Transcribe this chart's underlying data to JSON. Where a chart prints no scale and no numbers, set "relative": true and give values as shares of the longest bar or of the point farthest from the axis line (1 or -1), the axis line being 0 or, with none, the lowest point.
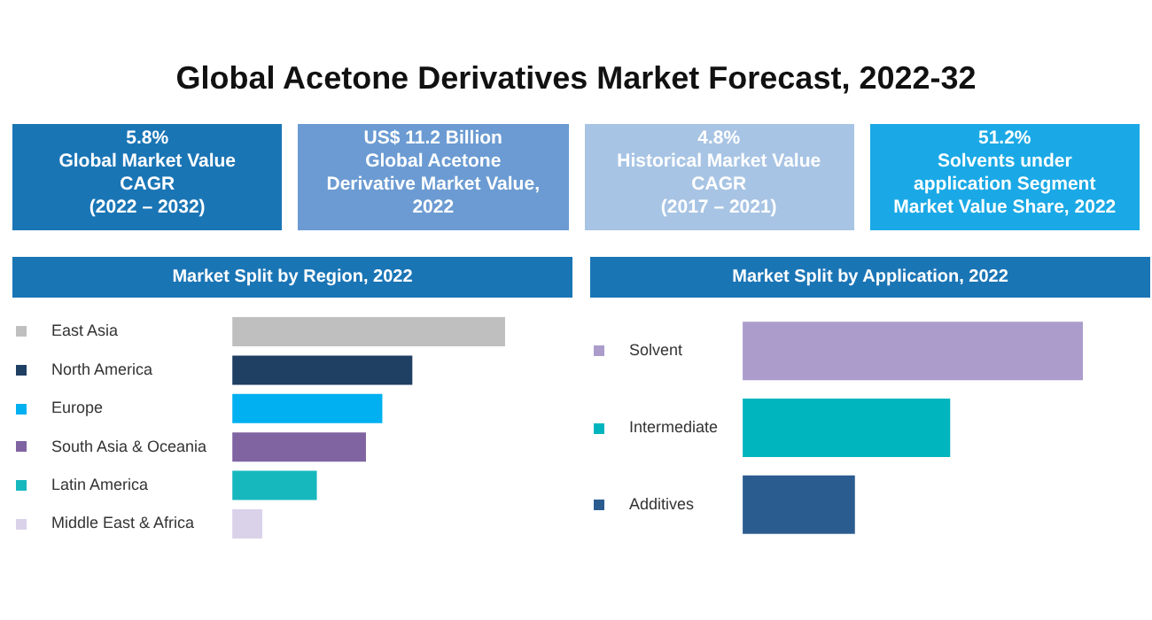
{
  "chart_data": [
    {
      "type": "other",
      "title": "Global Acetone Derivatives Market Forecast, 2022-32",
      "annotations": [
        "5.8%\nGlobal Market Value\nCAGR\n(2022 – 2032)",
        "US$ 11.2 Billion\nGlobal Acetone\nDerivative Market Value,\n2022",
        "4.8%\nHistorical Market Value\nCAGR\n(2017 – 2021)",
        "51.2%\nSolvents under\napplication Segment\nMarket Value Share, 2022"
      ],
      "colors": [
        "#1a75b5",
        "#6b9bd2",
        "#a8c4e4",
        "#1aa9e6"
      ]
    },
    {
      "type": "bar",
      "orientation": "horizontal",
      "relative": true,
      "title": "Market Split by Region, 2022",
      "categories": [
        "East Asia",
        "North America",
        "Europe",
        "South Asia & Oceania",
        "Latin America",
        "Middle East & Africa"
      ],
      "values": [
        1,
        0.66,
        0.55,
        0.49,
        0.31,
        0.11
      ],
      "colors": [
        "#bfbfbf",
        "#1f3f63",
        "#00b0f0",
        "#8064a2",
        "#17b8bd",
        "#d9d2e9"
      ],
      "grid": false,
      "legend": false,
      "tick_labels": "y"
    },
    {
      "type": "bar",
      "orientation": "horizontal",
      "relative": true,
      "title": "Market Split by Application, 2022",
      "categories": [
        "Solvent",
        "Intermediate",
        "Additives"
      ],
      "values": [
        1,
        0.61,
        0.33
      ],
      "colors": [
        "#ab9ccc",
        "#00b5bd",
        "#2b5c8f"
      ],
      "grid": false,
      "legend": false,
      "tick_labels": "y"
    }
  ]
}
